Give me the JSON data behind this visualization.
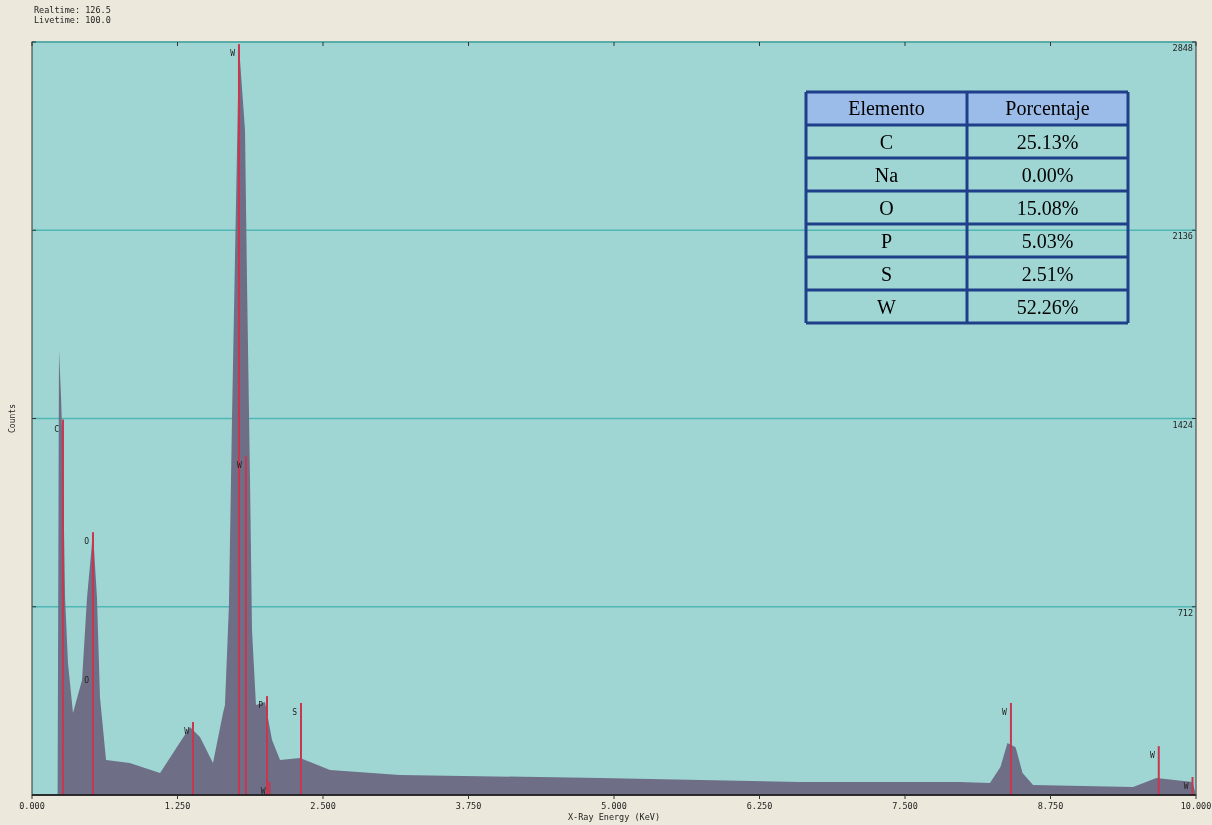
{
  "chart_data": [
    {
      "type": "area",
      "xlabel": "X-Ray Energy (KeV)",
      "ylabel": "Counts",
      "annotations": [
        "Realtime: 126.5",
        "Livetime: 100.0",
        {
          "text": "C",
          "x": 0.266,
          "y": 1420
        },
        {
          "text": "O",
          "x": 0.524,
          "y": 994
        },
        {
          "text": "O",
          "x": 0.524,
          "y": 470
        },
        {
          "text": "W",
          "x": 1.383,
          "y": 276
        },
        {
          "text": "W",
          "x": 1.778,
          "y": 2840
        },
        {
          "text": "W",
          "x": 1.838,
          "y": 1281
        },
        {
          "text": "P",
          "x": 2.019,
          "y": 374
        },
        {
          "text": "S",
          "x": 2.311,
          "y": 348
        },
        {
          "text": "W",
          "x": 2.04,
          "y": 50
        },
        {
          "text": "W",
          "x": 8.41,
          "y": 348
        },
        {
          "text": "W",
          "x": 9.68,
          "y": 185
        },
        {
          "text": "W",
          "x": 9.97,
          "y": 68
        }
      ],
      "xlim": [
        0,
        10
      ],
      "ylim": [
        0,
        2848
      ],
      "xticks": [
        {
          "value": 0,
          "label": "0.000"
        },
        {
          "value": 1.25,
          "label": "1.250"
        },
        {
          "value": 2.5,
          "label": "2.500"
        },
        {
          "value": 3.75,
          "label": "3.750"
        },
        {
          "value": 5,
          "label": "5.000"
        },
        {
          "value": 6.25,
          "label": "6.250"
        },
        {
          "value": 7.5,
          "label": "7.500"
        },
        {
          "value": 8.75,
          "label": "8.750"
        },
        {
          "value": 10,
          "label": "10.000"
        }
      ],
      "yticks": [
        712,
        1424,
        2136,
        2848
      ],
      "grid": "y",
      "series": [
        {
          "type": "area",
          "color": "#6e6e86",
          "x": [
            0,
            0.22,
            0.232,
            0.25,
            0.266,
            0.284,
            0.309,
            0.352,
            0.43,
            0.473,
            0.524,
            0.558,
            0.584,
            0.636,
            0.84,
            1.1,
            1.357,
            1.443,
            1.555,
            1.641,
            1.658,
            1.692,
            1.718,
            1.778,
            1.83,
            1.847,
            1.873,
            1.89,
            1.924,
            2.002,
            2.062,
            2.131,
            2.302,
            2.56,
            3.16,
            4.88,
            6.6,
            7.97,
            8.23,
            8.32,
            8.38,
            8.45,
            8.51,
            8.6,
            9.46,
            9.66,
            9.97,
            10
          ],
          "values": [
            0,
            0,
            1682,
            1500,
            1255,
            748,
            499,
            310,
            435,
            748,
            994,
            748,
            370,
            132,
            121,
            83,
            257,
            219,
            121,
            310,
            340,
            718,
            1418,
            2835,
            2514,
            1947,
            1191,
            624,
            340,
            352,
            208,
            132,
            140,
            95,
            76,
            64,
            49,
            49,
            45,
            106,
            197,
            181,
            83,
            38,
            30,
            64,
            49,
            0
          ]
        },
        {
          "type": "bar",
          "color": "#c8364f",
          "x": [
            0.266,
            0.524,
            1.383,
            1.778,
            1.838,
            2.019,
            2.04,
            2.311,
            8.41,
            9.68,
            9.97
          ],
          "values": [
            1420,
            994,
            276,
            2840,
            1281,
            374,
            50,
            348,
            348,
            185,
            68
          ]
        }
      ]
    },
    {
      "type": "other",
      "annotations": [
        "Elemento",
        "Porcentaje"
      ],
      "categories": [
        "C",
        "Na",
        "O",
        "P",
        "S",
        "W"
      ],
      "value_labels": [
        "25.13%",
        "0.00%",
        "15.08%",
        "5.03%",
        "2.51%",
        "52.26%"
      ]
    }
  ]
}
